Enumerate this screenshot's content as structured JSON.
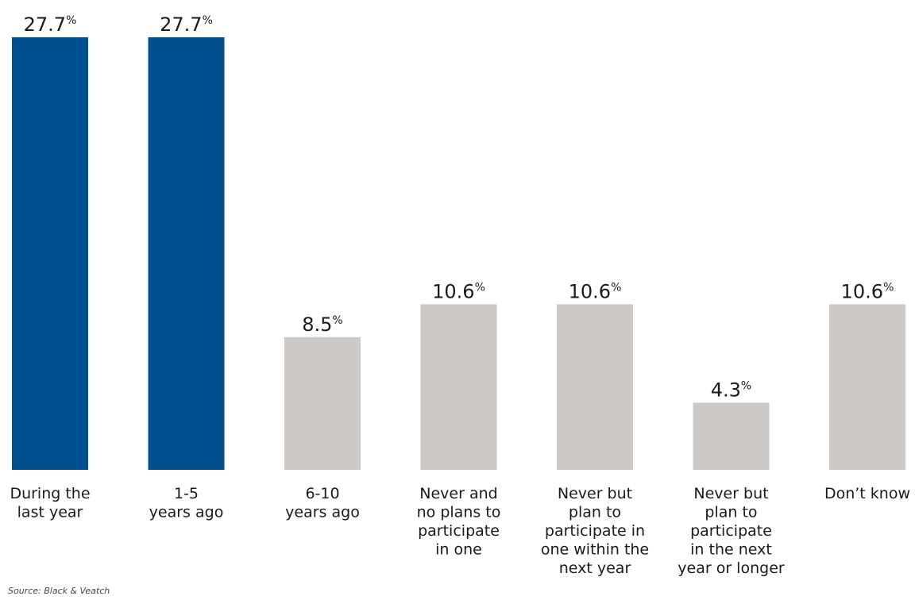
{
  "chart_data": {
    "type": "bar",
    "categories": [
      "During the\nlast year",
      "1-5\nyears ago",
      "6-10\nyears ago",
      "Never and\nno plans to\nparticipate\nin one",
      "Never but\nplan to\nparticipate in\none within the\nnext year",
      "Never but\nplan to\nparticipate\nin the next\nyear or longer",
      "Don’t know"
    ],
    "values": [
      27.7,
      27.7,
      8.5,
      10.6,
      10.6,
      4.3,
      10.6
    ],
    "value_suffix": "%",
    "ylim": [
      0,
      27.7
    ],
    "grid": false,
    "legend": "none",
    "colors": [
      "#00508f",
      "#00508f",
      "#cdc9c6",
      "#cdc9c6",
      "#cdc9c6",
      "#cdc9c6",
      "#cdc9c6"
    ]
  },
  "source": "Source: Black & Veatch"
}
